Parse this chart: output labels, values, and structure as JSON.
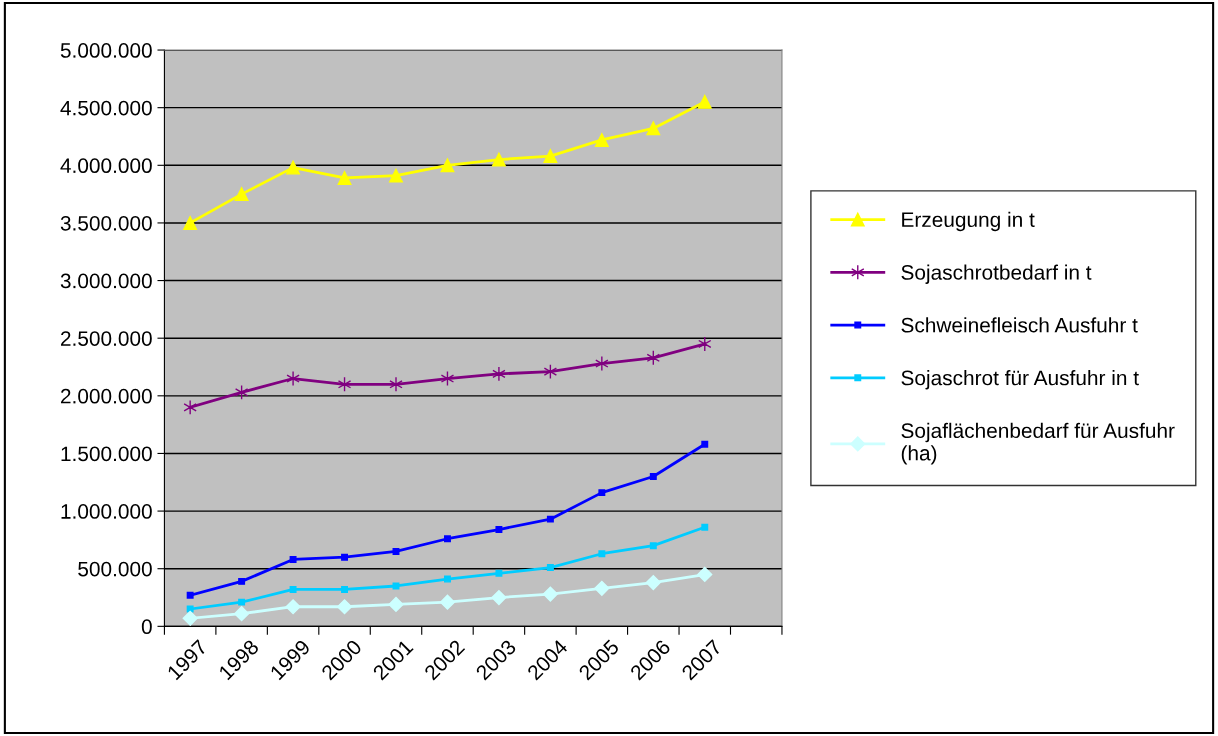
{
  "chart_data": {
    "type": "line",
    "categories": [
      "1997",
      "1998",
      "1999",
      "2000",
      "2001",
      "2002",
      "2003",
      "2004",
      "2005",
      "2006",
      "2007",
      null
    ],
    "series": [
      {
        "name": "Erzeugung in t",
        "color": "#ffff00",
        "marker": "triangle",
        "values": [
          3500000,
          3750000,
          3980000,
          3890000,
          3910000,
          4000000,
          4050000,
          4080000,
          4220000,
          4320000,
          4550000,
          null
        ]
      },
      {
        "name": "Sojaschrotbedarf in t",
        "color": "#800080",
        "marker": "cross",
        "values": [
          1900000,
          2030000,
          2150000,
          2100000,
          2100000,
          2150000,
          2190000,
          2210000,
          2280000,
          2330000,
          2450000,
          null
        ]
      },
      {
        "name": "Schweinefleisch Ausfuhr t",
        "color": "#0000ff",
        "marker": "square",
        "values": [
          270000,
          390000,
          580000,
          600000,
          650000,
          760000,
          840000,
          930000,
          1160000,
          1300000,
          1580000,
          null
        ]
      },
      {
        "name": "Sojaschrot für Ausfuhr in t",
        "color": "#00ccff",
        "marker": "square",
        "values": [
          150000,
          210000,
          320000,
          320000,
          350000,
          410000,
          460000,
          510000,
          630000,
          700000,
          860000,
          null
        ]
      },
      {
        "name": "Sojaflächenbedarf für Ausfuhr (ha)",
        "color": "#ccffff",
        "marker": "diamond",
        "values": [
          70000,
          110000,
          170000,
          170000,
          190000,
          210000,
          250000,
          280000,
          330000,
          380000,
          450000,
          null
        ]
      }
    ],
    "ylim": [
      0,
      5000000
    ],
    "yticks": [
      0,
      {
        "value": 500000,
        "label": "500.000"
      },
      {
        "value": 1000000,
        "label": "1.000.000"
      },
      {
        "value": 1500000,
        "label": "1.500.000"
      },
      {
        "value": 2000000,
        "label": "2.000.000"
      },
      {
        "value": 2500000,
        "label": "2.500.000"
      },
      {
        "value": 3000000,
        "label": "3.000.000"
      },
      {
        "value": 3500000,
        "label": "3.500.000"
      },
      {
        "value": 4000000,
        "label": "4.000.000"
      },
      {
        "value": 4500000,
        "label": "4.500.000"
      },
      {
        "value": 5000000,
        "label": "5.000.000"
      }
    ],
    "grid": "y",
    "legend": "right",
    "line_style": "solid"
  }
}
